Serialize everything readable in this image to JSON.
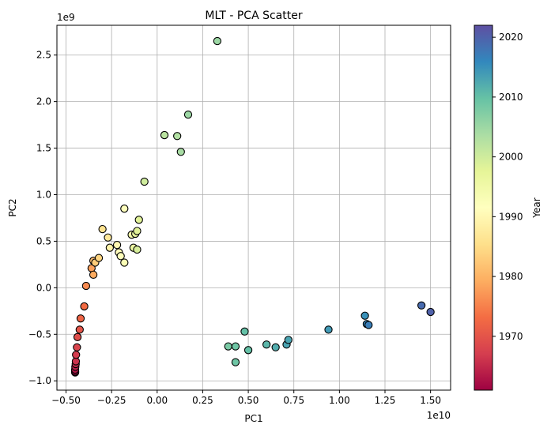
{
  "chart_data": {
    "type": "scatter",
    "title": "MLT - PCA Scatter",
    "xlabel": "PC1",
    "ylabel": "PC2",
    "x_offset_label": "1e10",
    "y_offset_label": "1e9",
    "x_scale": 10000000000,
    "y_scale": 1000000000,
    "xlim": [
      -0.55,
      1.61
    ],
    "ylim": [
      -1.1,
      2.82
    ],
    "x_ticks": [
      -0.5,
      -0.25,
      0.0,
      0.25,
      0.5,
      0.75,
      1.0,
      1.25,
      1.5
    ],
    "x_tick_labels": [
      "−0.50",
      "−0.25",
      "0.00",
      "0.25",
      "0.50",
      "0.75",
      "1.00",
      "1.25",
      "1.50"
    ],
    "y_ticks": [
      -1.0,
      -0.5,
      0.0,
      0.5,
      1.0,
      1.5,
      2.0,
      2.5
    ],
    "y_tick_labels": [
      "−1.0",
      "−0.5",
      "0.0",
      "0.5",
      "1.0",
      "1.5",
      "2.0",
      "2.5"
    ],
    "grid": true,
    "colorbar": {
      "label": "Year",
      "colormap": "Spectral",
      "range": [
        1961,
        2022
      ],
      "ticks": [
        1970,
        1980,
        1990,
        2000,
        2010,
        2020
      ],
      "tick_labels": [
        "1970",
        "1980",
        "1990",
        "2000",
        "2010",
        "2020"
      ]
    },
    "marker_edge_color": "#000000",
    "points": [
      {
        "x": -0.45,
        "y": -0.91,
        "year": 1961
      },
      {
        "x": -0.45,
        "y": -0.9,
        "year": 1962
      },
      {
        "x": -0.45,
        "y": -0.88,
        "year": 1963
      },
      {
        "x": -0.449,
        "y": -0.85,
        "year": 1964
      },
      {
        "x": -0.447,
        "y": -0.82,
        "year": 1965
      },
      {
        "x": -0.446,
        "y": -0.79,
        "year": 1966
      },
      {
        "x": -0.445,
        "y": -0.72,
        "year": 1967
      },
      {
        "x": -0.44,
        "y": -0.64,
        "year": 1968
      },
      {
        "x": -0.437,
        "y": -0.53,
        "year": 1969
      },
      {
        "x": -0.425,
        "y": -0.45,
        "year": 1970
      },
      {
        "x": -0.42,
        "y": -0.33,
        "year": 1972
      },
      {
        "x": -0.4,
        "y": -0.2,
        "year": 1973
      },
      {
        "x": -0.39,
        "y": 0.02,
        "year": 1976
      },
      {
        "x": -0.36,
        "y": 0.21,
        "year": 1978
      },
      {
        "x": -0.35,
        "y": 0.14,
        "year": 1979
      },
      {
        "x": -0.35,
        "y": 0.29,
        "year": 1981
      },
      {
        "x": -0.34,
        "y": 0.27,
        "year": 1983
      },
      {
        "x": -0.32,
        "y": 0.32,
        "year": 1984
      },
      {
        "x": -0.3,
        "y": 0.63,
        "year": 1986
      },
      {
        "x": -0.27,
        "y": 0.54,
        "year": 1987
      },
      {
        "x": -0.26,
        "y": 0.43,
        "year": 1989
      },
      {
        "x": -0.22,
        "y": 0.46,
        "year": 1990
      },
      {
        "x": -0.21,
        "y": 0.38,
        "year": 1991
      },
      {
        "x": -0.2,
        "y": 0.34,
        "year": 1992
      },
      {
        "x": -0.18,
        "y": 0.85,
        "year": 1992
      },
      {
        "x": -0.18,
        "y": 0.27,
        "year": 1993
      },
      {
        "x": -0.14,
        "y": 0.57,
        "year": 1995
      },
      {
        "x": -0.13,
        "y": 0.43,
        "year": 1996
      },
      {
        "x": -0.12,
        "y": 0.58,
        "year": 1997
      },
      {
        "x": -0.11,
        "y": 0.61,
        "year": 1998
      },
      {
        "x": -0.11,
        "y": 0.41,
        "year": 1999
      },
      {
        "x": -0.1,
        "y": 0.73,
        "year": 1998
      },
      {
        "x": -0.07,
        "y": 1.14,
        "year": 2000
      },
      {
        "x": 0.04,
        "y": 1.64,
        "year": 2002
      },
      {
        "x": 0.11,
        "y": 1.63,
        "year": 2003
      },
      {
        "x": 0.13,
        "y": 1.46,
        "year": 2004
      },
      {
        "x": 0.17,
        "y": 1.86,
        "year": 2005
      },
      {
        "x": 0.33,
        "y": 2.65,
        "year": 2005
      },
      {
        "x": 0.39,
        "y": -0.63,
        "year": 2008
      },
      {
        "x": 0.43,
        "y": -0.63,
        "year": 2009
      },
      {
        "x": 0.43,
        "y": -0.8,
        "year": 2009
      },
      {
        "x": 0.48,
        "y": -0.47,
        "year": 2010
      },
      {
        "x": 0.5,
        "y": -0.67,
        "year": 2010
      },
      {
        "x": 0.6,
        "y": -0.61,
        "year": 2011
      },
      {
        "x": 0.65,
        "y": -0.64,
        "year": 2012
      },
      {
        "x": 0.71,
        "y": -0.61,
        "year": 2013
      },
      {
        "x": 0.72,
        "y": -0.56,
        "year": 2013
      },
      {
        "x": 0.94,
        "y": -0.45,
        "year": 2014
      },
      {
        "x": 1.14,
        "y": -0.3,
        "year": 2015
      },
      {
        "x": 1.15,
        "y": -0.39,
        "year": 2016
      },
      {
        "x": 1.16,
        "y": -0.4,
        "year": 2017
      },
      {
        "x": 1.45,
        "y": -0.19,
        "year": 2019
      },
      {
        "x": 1.5,
        "y": -0.26,
        "year": 2020
      }
    ]
  }
}
